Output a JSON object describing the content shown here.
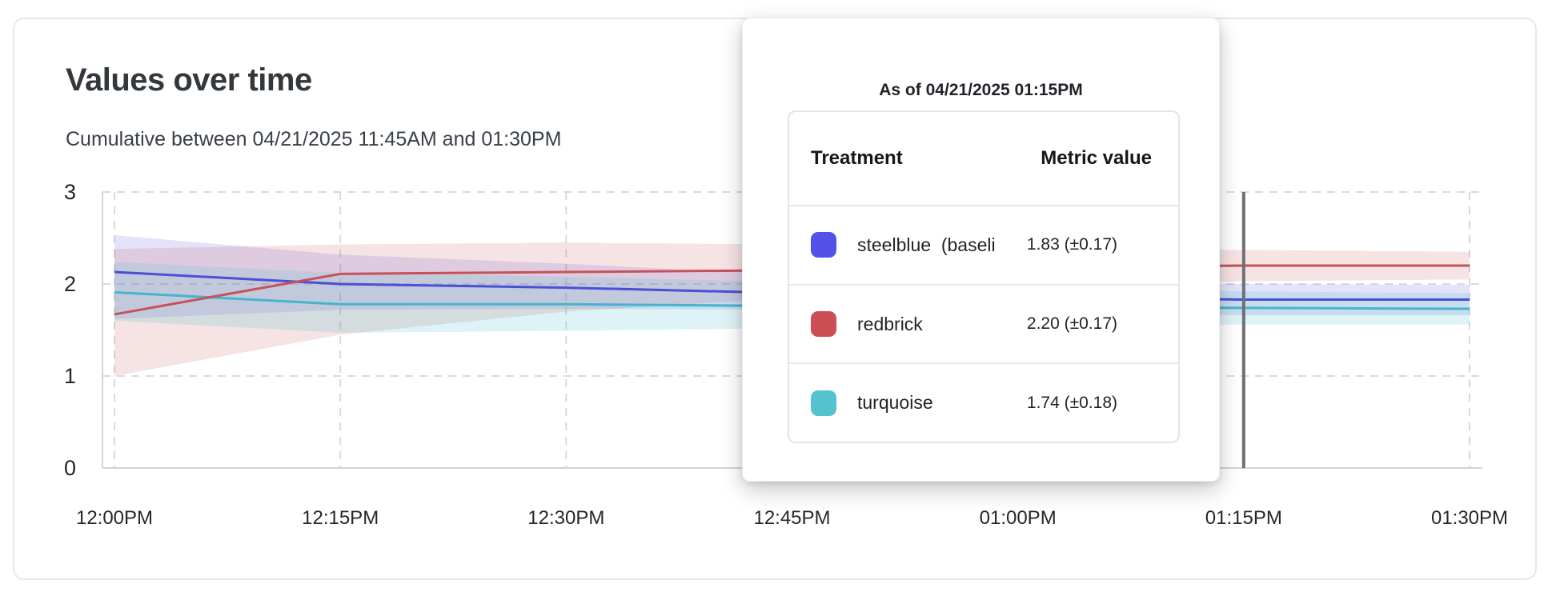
{
  "header": {
    "title": "Values over time",
    "subtitle": "Cumulative between 04/21/2025 11:45AM and 01:30PM"
  },
  "tooltip": {
    "title": "As of 04/21/2025 01:15PM",
    "columns": [
      "Treatment",
      "Metric value"
    ],
    "rows": [
      {
        "label": "steelblue  (baseli",
        "value": "1.83 (±0.17)",
        "swatch": "#5451e8"
      },
      {
        "label": "redbrick",
        "value": "2.20 (±0.17)",
        "swatch": "#cb4e55"
      },
      {
        "label": "turquoise",
        "value": "1.74 (±0.18)",
        "swatch": "#53c4cf"
      }
    ]
  },
  "colors": {
    "grid": "#d9dade",
    "axis": "#d2d3d7",
    "tick_text": "#24272b",
    "cursor": "#6e7073"
  },
  "chart_data": {
    "type": "line",
    "title": "Values over time",
    "xlabel": "",
    "ylabel": "",
    "ylim": [
      0,
      3
    ],
    "y_ticks": [
      0,
      1,
      2,
      3
    ],
    "grid": "dashed",
    "x_minutes": [
      0,
      15,
      30,
      45,
      60,
      75,
      90
    ],
    "x_tick_labels": [
      "12:00PM",
      "12:15PM",
      "12:30PM",
      "12:45PM",
      "01:00PM",
      "01:15PM",
      "01:30PM"
    ],
    "cursor_at_minute": 75,
    "cursor_label": "01:15PM",
    "series": [
      {
        "name": "steelblue (baseline)",
        "color": "#4c4ed6",
        "band_color": "rgba(83,82,230,0.16)",
        "values": [
          2.13,
          2.0,
          1.96,
          1.9,
          1.86,
          1.83,
          1.83
        ],
        "band_lower": [
          1.62,
          1.72,
          1.73,
          1.72,
          1.7,
          1.66,
          1.66
        ],
        "band_upper": [
          2.53,
          2.32,
          2.22,
          2.1,
          2.03,
          2.0,
          1.99
        ]
      },
      {
        "name": "redbrick",
        "color": "#c5525a",
        "band_color": "rgba(201,78,86,0.16)",
        "values": [
          1.67,
          2.11,
          2.13,
          2.15,
          2.18,
          2.2,
          2.2
        ],
        "band_lower": [
          1.0,
          1.45,
          1.7,
          1.85,
          1.96,
          2.03,
          2.05
        ],
        "band_upper": [
          2.38,
          2.43,
          2.45,
          2.43,
          2.4,
          2.37,
          2.35
        ]
      },
      {
        "name": "turquoise",
        "color": "#46b4cd",
        "band_color": "rgba(84,196,207,0.20)",
        "values": [
          1.91,
          1.78,
          1.78,
          1.76,
          1.75,
          1.74,
          1.73
        ],
        "band_lower": [
          1.6,
          1.47,
          1.49,
          1.52,
          1.54,
          1.56,
          1.56
        ],
        "band_upper": [
          2.24,
          2.12,
          2.08,
          2.02,
          1.97,
          1.92,
          1.9
        ]
      }
    ]
  }
}
